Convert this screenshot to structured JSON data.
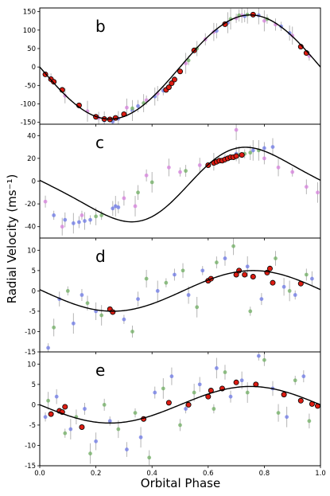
{
  "figure": {
    "xlabel": "Orbital Phase",
    "ylabel": "Radial Velocity (ms⁻¹)"
  },
  "colors": {
    "model": "#000000",
    "red_points": "#dd1c12",
    "blue_points": "#6c78e6",
    "green_points": "#6fae62",
    "magenta_points": "#d680dc",
    "error_bars": "#b5b5b5"
  },
  "chart_data": [
    {
      "type": "scatter",
      "panel": "b",
      "xlim": [
        0,
        1
      ],
      "ylim": [
        -155,
        160
      ],
      "yticks": [
        -150,
        -100,
        -50,
        0,
        50,
        100,
        150
      ],
      "model": {
        "amplitude": 141,
        "offset": 0,
        "phase_peak": 0.75,
        "shape": "sine"
      },
      "series": [
        {
          "name": "",
          "color": "red",
          "x": [
            0.02,
            0.04,
            0.05,
            0.08,
            0.14,
            0.2,
            0.23,
            0.25,
            0.27,
            0.3,
            0.45,
            0.46,
            0.47,
            0.48,
            0.5,
            0.55,
            0.66,
            0.76,
            0.93,
            0.95
          ],
          "y": [
            -20,
            -33,
            -40,
            -62,
            -104,
            -135,
            -141,
            -142,
            -138,
            -128,
            -62,
            -55,
            -44,
            -34,
            -12,
            45,
            116,
            142,
            55,
            38
          ]
        },
        {
          "name": "",
          "color": "magenta",
          "x": [
            0.04,
            0.09,
            0.17,
            0.21,
            0.31,
            0.38,
            0.42,
            0.52,
            0.59,
            0.62,
            0.7,
            0.72,
            0.8,
            0.84,
            0.9,
            0.96
          ],
          "y": [
            -30,
            -78,
            -120,
            -138,
            -110,
            -90,
            -72,
            10,
            75,
            95,
            132,
            140,
            125,
            115,
            85,
            30
          ]
        },
        {
          "name": "",
          "color": "blue",
          "x": [
            0.23,
            0.26,
            0.28,
            0.33,
            0.35,
            0.41,
            0.44,
            0.63,
            0.67,
            0.73,
            0.78,
            0.86,
            0.89
          ],
          "y": [
            -145,
            -148,
            -140,
            -118,
            -106,
            -80,
            -64,
            98,
            120,
            138,
            140,
            110,
            92
          ]
        },
        {
          "name": "",
          "color": "green",
          "x": [
            0.33,
            0.37,
            0.53,
            0.56,
            0.68,
            0.71,
            0.74,
            0.81
          ],
          "y": [
            -112,
            -98,
            18,
            50,
            130,
            140,
            142,
            130
          ]
        }
      ]
    },
    {
      "type": "scatter",
      "panel": "c",
      "xlim": [
        0,
        1
      ],
      "ylim": [
        -50,
        50
      ],
      "yticks": [
        -40,
        -20,
        0,
        20,
        40
      ],
      "model": {
        "amplitude": 31,
        "offset": -3,
        "phase_peak": 0.78,
        "shape": "eccentric"
      },
      "series": [
        {
          "name": "",
          "color": "red",
          "x": [
            0.6,
            0.62,
            0.63,
            0.64,
            0.65,
            0.66,
            0.67,
            0.68,
            0.69,
            0.7,
            0.72
          ],
          "y": [
            14,
            16,
            17,
            18,
            18,
            19,
            20,
            21,
            21,
            22,
            23
          ]
        },
        {
          "name": "",
          "color": "blue",
          "x": [
            0.05,
            0.09,
            0.12,
            0.14,
            0.16,
            0.18,
            0.26,
            0.27,
            0.28,
            0.62,
            0.66,
            0.7,
            0.76,
            0.8,
            0.83
          ],
          "y": [
            -30,
            -34,
            -37,
            -36,
            -35,
            -34,
            -24,
            -22,
            -23,
            17,
            20,
            24,
            27,
            29,
            30
          ]
        },
        {
          "name": "",
          "color": "green",
          "x": [
            0.2,
            0.22,
            0.35,
            0.4,
            0.52,
            0.71,
            0.73,
            0.75,
            0.78
          ],
          "y": [
            -31,
            -30,
            -10,
            -1,
            9,
            23,
            24,
            25,
            27
          ]
        },
        {
          "name": "",
          "color": "magenta",
          "x": [
            0.02,
            0.08,
            0.15,
            0.3,
            0.34,
            0.38,
            0.46,
            0.5,
            0.57,
            0.7,
            0.8,
            0.85,
            0.9,
            0.95,
            0.99
          ],
          "y": [
            -18,
            -40,
            -30,
            -15,
            -22,
            5,
            12,
            8,
            14,
            45,
            20,
            12,
            8,
            -5,
            -10
          ]
        }
      ]
    },
    {
      "type": "scatter",
      "panel": "d",
      "xlim": [
        0,
        1
      ],
      "ylim": [
        -15,
        13
      ],
      "yticks": [
        -15,
        -10,
        -5,
        0,
        5,
        10
      ],
      "model": {
        "amplitude": 5,
        "offset": 0,
        "phase_peak": 0.76,
        "shape": "sine"
      },
      "series": [
        {
          "name": "",
          "color": "red",
          "x": [
            0.25,
            0.26,
            0.6,
            0.61,
            0.7,
            0.71,
            0.73,
            0.76,
            0.81,
            0.82,
            0.83,
            0.93
          ],
          "y": [
            -4.5,
            -5.2,
            2.5,
            3,
            4,
            5,
            4,
            3.5,
            4.5,
            5.5,
            2,
            1.8
          ]
        },
        {
          "name": "",
          "color": "blue",
          "x": [
            0.03,
            0.07,
            0.12,
            0.15,
            0.2,
            0.3,
            0.35,
            0.42,
            0.48,
            0.53,
            0.58,
            0.66,
            0.74,
            0.79,
            0.87,
            0.91,
            0.97
          ],
          "y": [
            -14,
            -2,
            -8,
            -1,
            -5,
            -7,
            -2,
            0,
            4,
            -1,
            5,
            8,
            6,
            -2,
            1,
            -1,
            3
          ]
        },
        {
          "name": "",
          "color": "green",
          "x": [
            0.05,
            0.1,
            0.17,
            0.22,
            0.33,
            0.38,
            0.45,
            0.51,
            0.56,
            0.63,
            0.69,
            0.75,
            0.84,
            0.89,
            0.95
          ],
          "y": [
            -9,
            0,
            -3,
            -6,
            -10,
            3,
            2,
            5,
            -4,
            7,
            11,
            -5,
            8,
            0,
            4
          ]
        }
      ]
    },
    {
      "type": "scatter",
      "panel": "e",
      "xlim": [
        0,
        1
      ],
      "ylim": [
        -15,
        13
      ],
      "yticks": [
        -15,
        -10,
        -5,
        0,
        5,
        10
      ],
      "model": {
        "amplitude": 4.5,
        "offset": 0,
        "phase_peak": 0.75,
        "shape": "sine"
      },
      "series": [
        {
          "name": "",
          "color": "red",
          "x": [
            0.04,
            0.07,
            0.08,
            0.09,
            0.15,
            0.37,
            0.46,
            0.53,
            0.6,
            0.61,
            0.65,
            0.7,
            0.77,
            0.87,
            0.93,
            0.97,
            0.99
          ],
          "y": [
            -2.3,
            -1.5,
            -1.8,
            -0.5,
            -5.5,
            -3.5,
            0.5,
            0,
            2,
            3.5,
            4,
            5.5,
            5,
            2.5,
            1,
            0.2,
            -0.3
          ]
        },
        {
          "name": "",
          "color": "blue",
          "x": [
            0.02,
            0.06,
            0.11,
            0.16,
            0.2,
            0.25,
            0.31,
            0.36,
            0.41,
            0.47,
            0.52,
            0.57,
            0.63,
            0.68,
            0.72,
            0.78,
            0.83,
            0.88,
            0.94
          ],
          "y": [
            -3,
            2,
            -6,
            -1,
            -9,
            -4,
            -11,
            -8,
            3,
            7,
            -1,
            5,
            9,
            2,
            6,
            12,
            4,
            -3,
            7
          ]
        },
        {
          "name": "",
          "color": "green",
          "x": [
            0.03,
            0.09,
            0.13,
            0.18,
            0.23,
            0.28,
            0.34,
            0.39,
            0.44,
            0.5,
            0.55,
            0.62,
            0.66,
            0.74,
            0.8,
            0.85,
            0.91,
            0.96
          ],
          "y": [
            1,
            -7,
            -3,
            -12,
            0,
            -6,
            -2,
            -13,
            4,
            -5,
            3,
            -1,
            8,
            3,
            11,
            -2,
            6,
            -4
          ]
        }
      ]
    }
  ],
  "panels_xticks": [
    0.0,
    0.2,
    0.4,
    0.6,
    0.8,
    1.0
  ]
}
